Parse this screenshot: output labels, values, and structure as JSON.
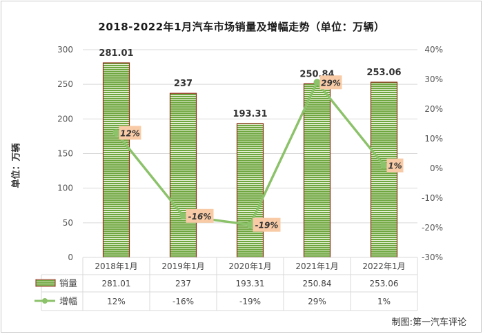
{
  "title": "2018-2022年1月汽车市场销量及增幅走势（单位：万辆）",
  "credit": "制图:第一汽车评论",
  "chart_data": {
    "type": "bar",
    "categories": [
      "2018年1月",
      "2019年1月",
      "2020年1月",
      "2021年1月",
      "2022年1月"
    ],
    "series": [
      {
        "name": "销量",
        "type": "bar",
        "axis": "left",
        "values": [
          281.01,
          237,
          193.31,
          250.84,
          253.06
        ],
        "value_labels": [
          "281.01",
          "237",
          "193.31",
          "250.84",
          "253.06"
        ]
      },
      {
        "name": "增幅",
        "type": "line",
        "axis": "right",
        "values": [
          12,
          -16,
          -19,
          29,
          1
        ],
        "value_labels": [
          "12%",
          "-16%",
          "-19%",
          "29%",
          "1%"
        ]
      }
    ],
    "ylabel": "单位：万辆",
    "ylim": [
      0,
      300
    ],
    "y_ticks": [
      "0",
      "50",
      "100",
      "150",
      "200",
      "250",
      "300"
    ],
    "y2lim": [
      -30,
      40
    ],
    "y2_ticks": [
      "-30%",
      "-20%",
      "-10%",
      "0%",
      "10%",
      "20%",
      "30%",
      "40%"
    ],
    "grid": true,
    "legend": "data-table-below",
    "colors": {
      "bar_fill": "#6fa640",
      "bar_stripe": "#e4f0d4",
      "bar_border": "#8b2a12",
      "line": "#8cc26a",
      "label_box": "#f8cba6",
      "grid": "#d9d9d9"
    }
  }
}
